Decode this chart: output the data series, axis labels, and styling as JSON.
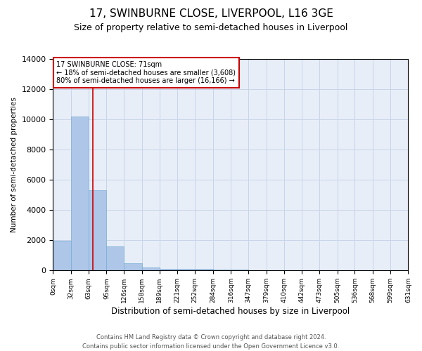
{
  "title": "17, SWINBURNE CLOSE, LIVERPOOL, L16 3GE",
  "subtitle": "Size of property relative to semi-detached houses in Liverpool",
  "xlabel": "Distribution of semi-detached houses by size in Liverpool",
  "ylabel": "Number of semi-detached properties",
  "footer_line1": "Contains HM Land Registry data © Crown copyright and database right 2024.",
  "footer_line2": "Contains public sector information licensed under the Open Government Licence v3.0.",
  "annotation_line1": "17 SWINBURNE CLOSE: 71sqm",
  "annotation_line2": "← 18% of semi-detached houses are smaller (3,608)",
  "annotation_line3": "80% of semi-detached houses are larger (16,166) →",
  "property_size": 71,
  "bin_edges": [
    0,
    32,
    63,
    95,
    126,
    158,
    189,
    221,
    252,
    284,
    316,
    347,
    379,
    410,
    442,
    473,
    505,
    536,
    568,
    599,
    631
  ],
  "bar_heights": [
    1980,
    10200,
    5300,
    1600,
    500,
    220,
    100,
    95,
    90,
    85,
    80,
    0,
    0,
    0,
    0,
    0,
    0,
    0,
    0,
    0
  ],
  "bar_color": "#aec6e8",
  "bar_edge_color": "#7aaed6",
  "marker_line_color": "#cc0000",
  "grid_color": "#c8d4e8",
  "bg_color": "#e8eef8",
  "ylim": [
    0,
    14000
  ],
  "yticks": [
    0,
    2000,
    4000,
    6000,
    8000,
    10000,
    12000,
    14000
  ],
  "annotation_box_edge": "#cc0000",
  "title_fontsize": 11,
  "subtitle_fontsize": 9,
  "tick_labels": [
    "0sqm",
    "32sqm",
    "63sqm",
    "95sqm",
    "126sqm",
    "158sqm",
    "189sqm",
    "221sqm",
    "252sqm",
    "284sqm",
    "316sqm",
    "347sqm",
    "379sqm",
    "410sqm",
    "442sqm",
    "473sqm",
    "505sqm",
    "536sqm",
    "568sqm",
    "599sqm",
    "631sqm"
  ]
}
